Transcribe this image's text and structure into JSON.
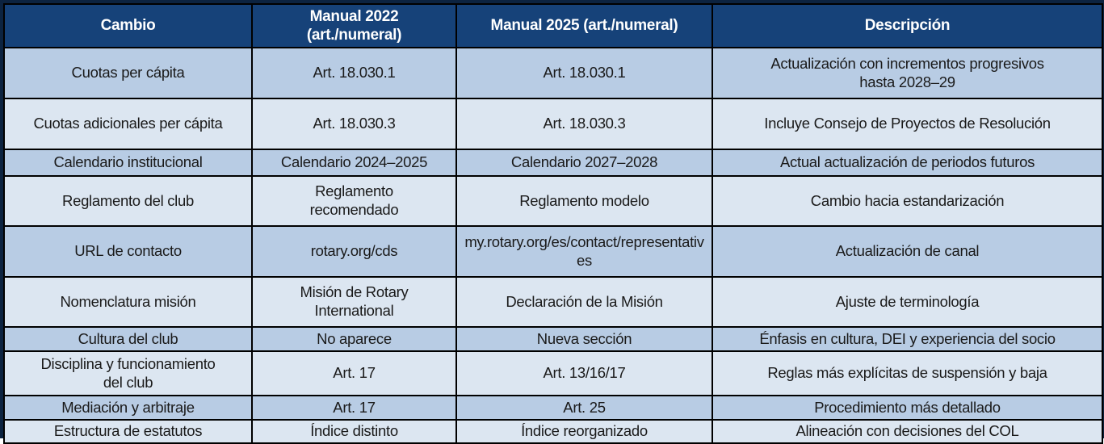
{
  "table": {
    "columns": [
      {
        "label": "Cambio"
      },
      {
        "label": "Manual 2022\n(art./numeral)"
      },
      {
        "label": "Manual 2025 (art./numeral)"
      },
      {
        "label": "Descripción"
      }
    ],
    "rows": [
      {
        "cambio": "Cuotas per cápita",
        "manual_2022": "Art. 18.030.1",
        "manual_2025": "Art. 18.030.1",
        "descripcion": "Actualización con incrementos progresivos\nhasta 2028–29"
      },
      {
        "cambio": "Cuotas adicionales per cápita",
        "manual_2022": "Art. 18.030.3",
        "manual_2025": "Art. 18.030.3",
        "descripcion": "Incluye Consejo de Proyectos de Resolución"
      },
      {
        "cambio": "Calendario institucional",
        "manual_2022": "Calendario 2024–2025",
        "manual_2025": "Calendario 2027–2028",
        "descripcion": "Actual actualización de periodos futuros"
      },
      {
        "cambio": "Reglamento del club",
        "manual_2022": "Reglamento\nrecomendado",
        "manual_2025": "Reglamento modelo",
        "descripcion": "Cambio hacia estandarización"
      },
      {
        "cambio": "URL de contacto",
        "manual_2022": "rotary.org/cds",
        "manual_2025": "my.rotary.org/es/contact/representatives",
        "descripcion": "Actualización de canal"
      },
      {
        "cambio": "Nomenclatura misión",
        "manual_2022": "Misión de Rotary\nInternational",
        "manual_2025": "Declaración de la Misión",
        "descripcion": "Ajuste de terminología"
      },
      {
        "cambio": "Cultura del club",
        "manual_2022": "No aparece",
        "manual_2025": "Nueva sección",
        "descripcion": "Énfasis en cultura, DEI y experiencia del socio"
      },
      {
        "cambio": "Disciplina y funcionamiento\ndel club",
        "manual_2022": "Art. 17",
        "manual_2025": "Art. 13/16/17",
        "descripcion": "Reglas más explícitas de suspensión y baja"
      },
      {
        "cambio": "Mediación y arbitraje",
        "manual_2022": "Art. 17",
        "manual_2025": "Art. 25",
        "descripcion": "Procedimiento más detallado"
      },
      {
        "cambio": "Estructura de estatutos",
        "manual_2022": "Índice distinto",
        "manual_2025": "Índice reorganizado",
        "descripcion": "Alineación con decisiones del COL"
      }
    ]
  },
  "colors": {
    "header_bg": "#164279",
    "header_text": "#ffffff",
    "row_odd": "#b8cce4",
    "row_even": "#dce6f1",
    "grid_line": "#000000",
    "outer_border": "#0c2340",
    "body_text": "#1a1a1a"
  }
}
